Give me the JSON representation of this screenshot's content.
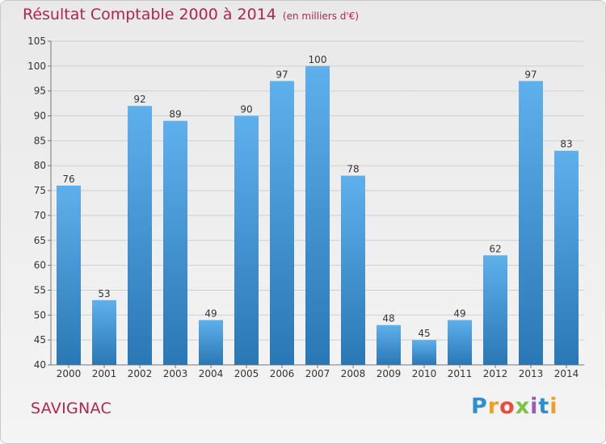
{
  "header": {
    "title": "Résultat Comptable 2000 à 2014",
    "subtitle": "(en milliers d'€)"
  },
  "footer": {
    "commune": "SAVIGNAC",
    "brand": "Proxiti"
  },
  "colors": {
    "title": "#b2244f",
    "bar_top": "#5eb0ec",
    "bar_bottom": "#2a77b5",
    "label": "#333333",
    "grid": "#cfcfcf"
  },
  "chart_data": {
    "type": "bar",
    "title": "Résultat Comptable 2000 à 2014",
    "xlabel": "",
    "ylabel": "",
    "ylim": [
      40,
      105
    ],
    "yticks": [
      40,
      45,
      50,
      55,
      60,
      65,
      70,
      75,
      80,
      85,
      90,
      95,
      100,
      105
    ],
    "categories": [
      "2000",
      "2001",
      "2002",
      "2003",
      "2004",
      "2005",
      "2006",
      "2007",
      "2008",
      "2009",
      "2010",
      "2011",
      "2012",
      "2013",
      "2014"
    ],
    "values": [
      76,
      53,
      92,
      89,
      49,
      90,
      97,
      100,
      78,
      48,
      45,
      49,
      62,
      97,
      83
    ],
    "grid": true,
    "legend": "none"
  }
}
